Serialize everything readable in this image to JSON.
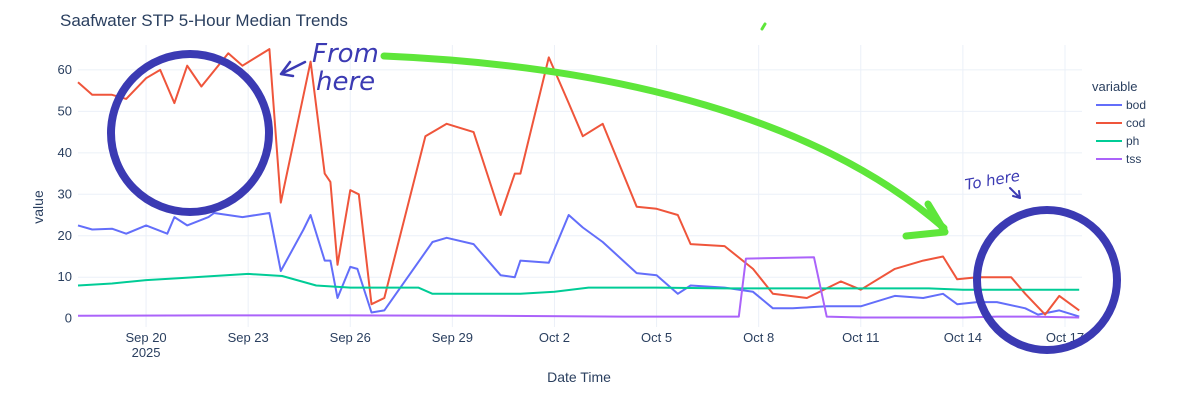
{
  "chart_data": {
    "type": "line",
    "title": "Saafwater STP 5-Hour Median Trends",
    "xlabel": "Date Time",
    "ylabel": "value",
    "x_ticks": [
      {
        "date": "2025-09-20",
        "label": "Sep 20",
        "sublabel": "2025"
      },
      {
        "date": "2025-09-23",
        "label": "Sep 23",
        "sublabel": ""
      },
      {
        "date": "2025-09-26",
        "label": "Sep 26",
        "sublabel": ""
      },
      {
        "date": "2025-09-29",
        "label": "Sep 29",
        "sublabel": ""
      },
      {
        "date": "2025-10-02",
        "label": "Oct 2",
        "sublabel": ""
      },
      {
        "date": "2025-10-05",
        "label": "Oct 5",
        "sublabel": ""
      },
      {
        "date": "2025-10-08",
        "label": "Oct 8",
        "sublabel": ""
      },
      {
        "date": "2025-10-11",
        "label": "Oct 11",
        "sublabel": ""
      },
      {
        "date": "2025-10-14",
        "label": "Oct 14",
        "sublabel": ""
      },
      {
        "date": "2025-10-17",
        "label": "Oct 17",
        "sublabel": ""
      }
    ],
    "xlim": [
      "2025-09-18T00:00",
      "2025-10-17T12:00"
    ],
    "ylim": [
      -2,
      66
    ],
    "y_ticks": [
      0,
      10,
      20,
      30,
      40,
      50,
      60
    ],
    "grid": true,
    "legend": {
      "title": "variable",
      "placement": "right"
    },
    "series": [
      {
        "name": "bod",
        "color": "#636efa",
        "x": [
          "2025-09-18T00:00",
          "2025-09-18T10:00",
          "2025-09-19T00:00",
          "2025-09-19T10:00",
          "2025-09-20T00:00",
          "2025-09-20T15:00",
          "2025-09-20T20:00",
          "2025-09-21T05:00",
          "2025-09-21T20:00",
          "2025-09-22T00:00",
          "2025-09-22T20:00",
          "2025-09-23T15:00",
          "2025-09-23T23:00",
          "2025-09-24T15:00",
          "2025-09-24T20:00",
          "2025-09-25T06:00",
          "2025-09-25T10:00",
          "2025-09-25T15:00",
          "2025-09-26T00:00",
          "2025-09-26T05:00",
          "2025-09-26T15:00",
          "2025-09-27T00:00",
          "2025-09-28T10:00",
          "2025-09-28T20:00",
          "2025-09-29T15:00",
          "2025-09-30T10:00",
          "2025-09-30T20:00",
          "2025-10-01T00:00",
          "2025-10-01T20:00",
          "2025-10-02T10:00",
          "2025-10-02T20:00",
          "2025-10-03T10:00",
          "2025-10-04T10:00",
          "2025-10-05T00:00",
          "2025-10-05T15:00",
          "2025-10-06T00:00",
          "2025-10-07T00:00",
          "2025-10-07T20:00",
          "2025-10-08T10:00",
          "2025-10-09T00:00",
          "2025-10-10T00:00",
          "2025-10-11T00:00",
          "2025-10-12T00:00",
          "2025-10-12T20:00",
          "2025-10-13T10:00",
          "2025-10-13T20:00",
          "2025-10-14T10:00",
          "2025-10-15T00:00",
          "2025-10-15T20:00",
          "2025-10-16T05:00",
          "2025-10-16T20:00",
          "2025-10-17T10:00"
        ],
        "values": [
          22.5,
          21.5,
          21.7,
          20.5,
          22.5,
          20.5,
          24.5,
          22.5,
          24.5,
          25.5,
          24.5,
          25.5,
          11.5,
          21.5,
          25,
          14,
          14,
          5,
          12.5,
          12,
          1.5,
          2,
          18.5,
          19.5,
          18,
          10.5,
          10,
          14,
          13.5,
          25,
          22,
          18.5,
          11,
          10.5,
          6,
          8,
          7.5,
          6.5,
          2.5,
          2.5,
          3,
          3,
          5.5,
          5,
          6,
          3.5,
          4,
          4,
          2.5,
          1,
          2,
          0.5
        ]
      },
      {
        "name": "cod",
        "color": "#ef553b",
        "x": [
          "2025-09-18T00:00",
          "2025-09-18T10:00",
          "2025-09-19T00:00",
          "2025-09-19T10:00",
          "2025-09-20T00:00",
          "2025-09-20T10:00",
          "2025-09-20T20:00",
          "2025-09-21T05:00",
          "2025-09-21T15:00",
          "2025-09-22T10:00",
          "2025-09-22T20:00",
          "2025-09-23T15:00",
          "2025-09-23T23:00",
          "2025-09-24T20:00",
          "2025-09-25T06:00",
          "2025-09-25T10:00",
          "2025-09-25T15:00",
          "2025-09-26T00:00",
          "2025-09-26T06:00",
          "2025-09-26T15:00",
          "2025-09-27T00:00",
          "2025-09-28T05:00",
          "2025-09-28T20:00",
          "2025-09-29T15:00",
          "2025-09-30T10:00",
          "2025-09-30T20:00",
          "2025-10-01T00:00",
          "2025-10-01T20:00",
          "2025-10-02T10:00",
          "2025-10-02T20:00",
          "2025-10-03T10:00",
          "2025-10-04T10:00",
          "2025-10-05T00:00",
          "2025-10-05T15:00",
          "2025-10-06T00:00",
          "2025-10-07T00:00",
          "2025-10-07T20:00",
          "2025-10-08T10:00",
          "2025-10-09T10:00",
          "2025-10-10T10:00",
          "2025-10-11T00:00",
          "2025-10-12T00:00",
          "2025-10-12T20:00",
          "2025-10-13T10:00",
          "2025-10-13T20:00",
          "2025-10-14T10:00",
          "2025-10-15T10:00",
          "2025-10-15T20:00",
          "2025-10-16T10:00",
          "2025-10-16T20:00",
          "2025-10-17T10:00"
        ],
        "values": [
          57,
          54,
          54,
          53,
          58,
          60,
          52,
          61,
          56,
          64,
          61,
          65,
          28,
          62,
          35,
          33,
          13,
          31,
          30,
          3.5,
          5,
          44,
          47,
          45,
          25,
          35,
          35,
          63,
          52,
          44,
          47,
          27,
          26.5,
          25,
          18,
          17.5,
          12,
          6,
          5,
          9,
          7,
          12,
          14,
          15,
          9.5,
          10,
          10,
          6,
          1,
          5.5,
          2
        ]
      },
      {
        "name": "ph",
        "color": "#00cc96",
        "x": [
          "2025-09-18T00:00",
          "2025-09-19T00:00",
          "2025-09-20T00:00",
          "2025-09-21T00:00",
          "2025-09-22T00:00",
          "2025-09-23T00:00",
          "2025-09-24T00:00",
          "2025-09-25T00:00",
          "2025-09-26T00:00",
          "2025-09-27T00:00",
          "2025-09-28T00:00",
          "2025-09-28T10:00",
          "2025-09-29T00:00",
          "2025-10-01T00:00",
          "2025-10-02T00:00",
          "2025-10-03T00:00",
          "2025-10-05T00:00",
          "2025-10-07T00:00",
          "2025-10-09T00:00",
          "2025-10-11T00:00",
          "2025-10-13T00:00",
          "2025-10-14T00:00",
          "2025-10-15T00:00",
          "2025-10-16T00:00",
          "2025-10-17T10:00"
        ],
        "values": [
          8,
          8.5,
          9.3,
          9.8,
          10.3,
          10.8,
          10.3,
          8,
          7.5,
          7.5,
          7.5,
          6,
          6,
          6,
          6.5,
          7.5,
          7.5,
          7.3,
          7.3,
          7.3,
          7.3,
          7,
          7,
          7,
          7
        ]
      },
      {
        "name": "tss",
        "color": "#ab63fa",
        "x": [
          "2025-09-18T00:00",
          "2025-09-22T00:00",
          "2025-09-26T00:00",
          "2025-09-30T00:00",
          "2025-10-04T00:00",
          "2025-10-07T10:00",
          "2025-10-07T15:00",
          "2025-10-09T15:00",
          "2025-10-10T00:00",
          "2025-10-11T00:00",
          "2025-10-12T00:00",
          "2025-10-13T00:00",
          "2025-10-14T00:00",
          "2025-10-15T00:00",
          "2025-10-16T00:00",
          "2025-10-17T10:00"
        ],
        "values": [
          0.7,
          0.8,
          0.8,
          0.7,
          0.5,
          0.5,
          14.5,
          14.8,
          0.5,
          0.3,
          0.3,
          0.3,
          0.3,
          0.5,
          0.5,
          0.3
        ]
      }
    ]
  },
  "annotations": {
    "from_text_line1": "From",
    "from_text_line2": "here",
    "to_text": "To here"
  }
}
